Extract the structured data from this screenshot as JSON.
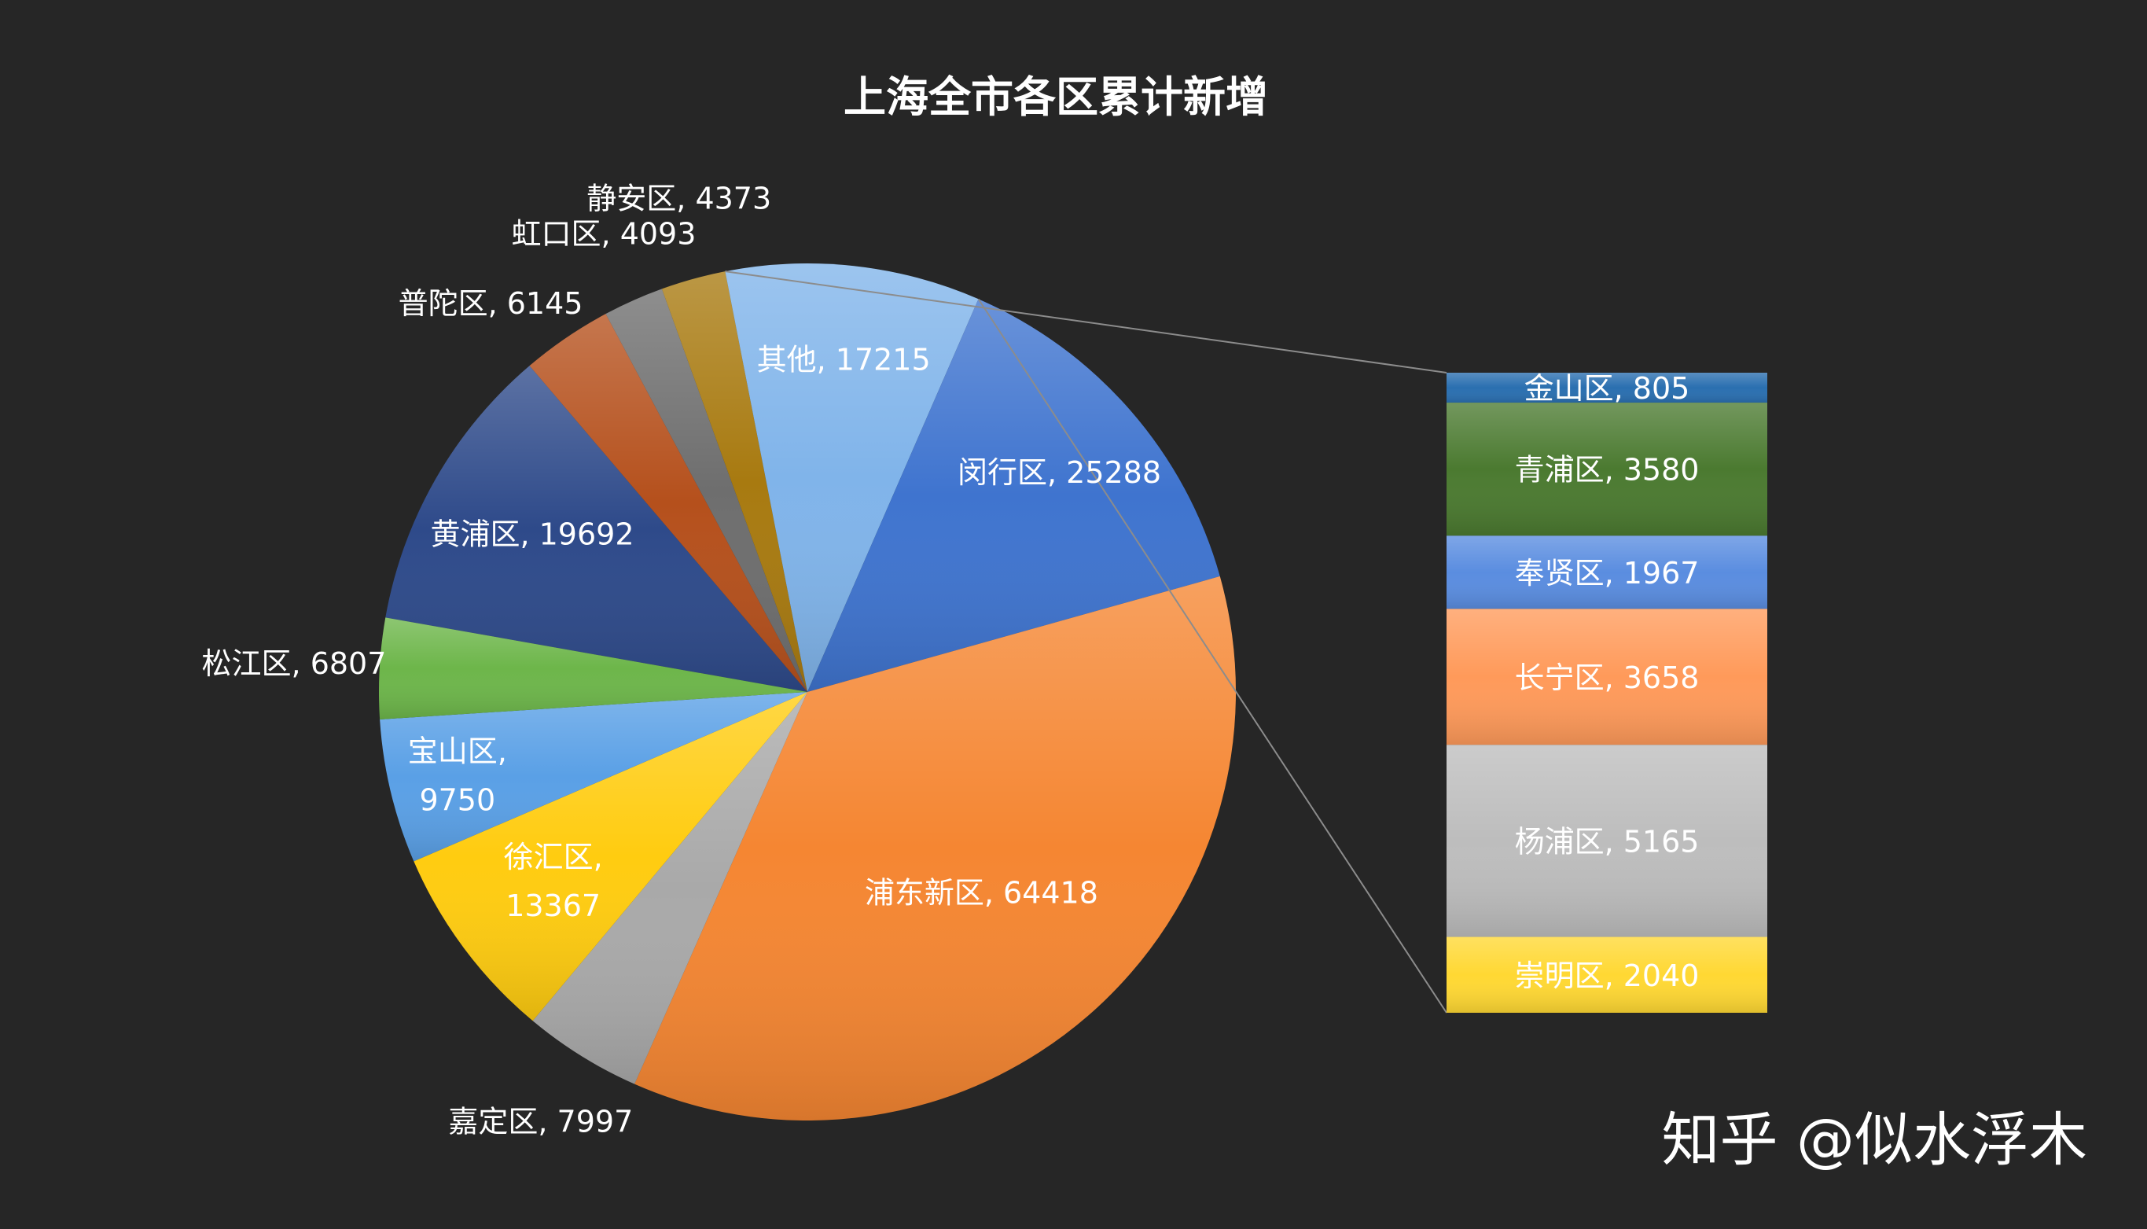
{
  "chart_data": {
    "type": "pie",
    "subtype": "bar-of-pie",
    "title": "上海全市各区累计新增",
    "slices": [
      {
        "name": "黄浦区",
        "value": 19692,
        "color": "#2e4a8a",
        "label": "黄浦区, 19692"
      },
      {
        "name": "普陀区",
        "value": 6145,
        "color": "#b5501c",
        "label": "普陀区, 6145"
      },
      {
        "name": "虹口区",
        "value": 4093,
        "color": "#6e6e6e",
        "label": "虹口区, 4093"
      },
      {
        "name": "静安区",
        "value": 4373,
        "color": "#a87a10",
        "label": "静安区, 4373"
      },
      {
        "name": "其他",
        "value": 17215,
        "color": "#80b4ea",
        "label": "其他, 17215"
      },
      {
        "name": "闵行区",
        "value": 25288,
        "color": "#3f74cf",
        "label": "闵行区, 25288"
      },
      {
        "name": "浦东新区",
        "value": 64418,
        "color": "#f58632",
        "label": "浦东新区, 64418"
      },
      {
        "name": "嘉定区",
        "value": 7997,
        "color": "#a9a9a9",
        "label": "嘉定区, 7997"
      },
      {
        "name": "徐汇区",
        "value": 13367,
        "color": "#ffcc10",
        "label_lines": [
          "徐汇区,",
          "13367"
        ]
      },
      {
        "name": "宝山区",
        "value": 9750,
        "color": "#5aa0e6",
        "label_lines": [
          "宝山区,",
          "9750"
        ]
      },
      {
        "name": "松江区",
        "value": 6807,
        "color": "#6db64a",
        "label": "松江区, 6807"
      }
    ],
    "secondary_bar": [
      {
        "name": "金山区",
        "value": 805,
        "color": "#2a6fb0",
        "label": "金山区, 805"
      },
      {
        "name": "青浦区",
        "value": 3580,
        "color": "#4b7a30",
        "label": "青浦区, 3580"
      },
      {
        "name": "奉贤区",
        "value": 1967,
        "color": "#5a8de0",
        "label": "奉贤区, 1967"
      },
      {
        "name": "长宁区",
        "value": 3658,
        "color": "#ff9a5a",
        "label": "长宁区, 3658"
      },
      {
        "name": "杨浦区",
        "value": 5165,
        "color": "#bdbdbd",
        "label": "杨浦区, 5165"
      },
      {
        "name": "崇明区",
        "value": 2040,
        "color": "#ffd833",
        "label": "崇明区, 2040"
      }
    ]
  },
  "watermark": "知乎 @似水浮木"
}
